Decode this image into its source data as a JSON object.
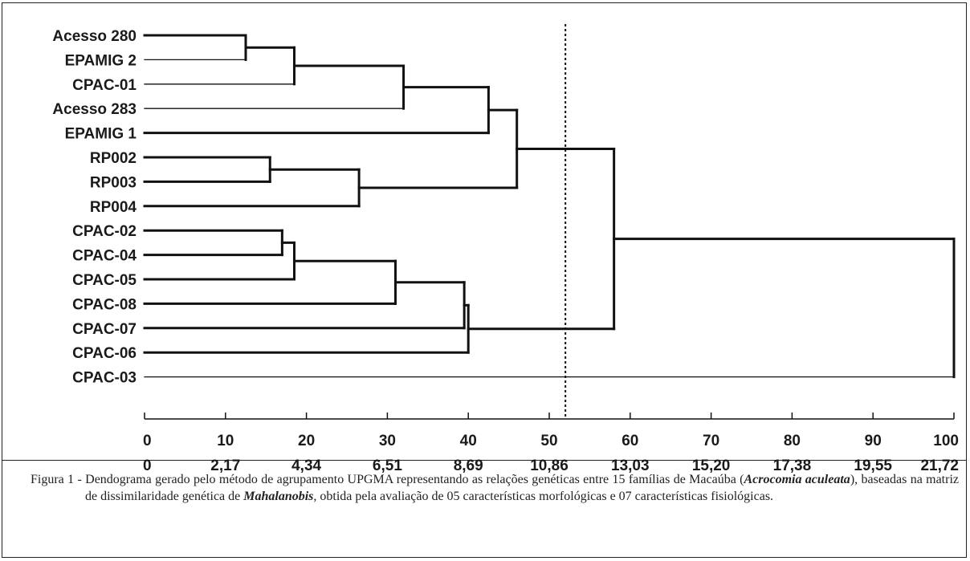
{
  "leaves": [
    "Acesso 280",
    "EPAMIG 2",
    "CPAC-01",
    "Acesso 283",
    "EPAMIG 1",
    "RP002",
    "RP003",
    "RP004",
    "CPAC-02",
    "CPAC-04",
    "CPAC-05",
    "CPAC-08",
    "CPAC-07",
    "CPAC-06",
    "CPAC-03"
  ],
  "merges": [
    {
      "a": 0,
      "b": 1,
      "height": 12.5
    },
    {
      "a": "m0",
      "b": 2,
      "height": 18.5
    },
    {
      "a": "m1",
      "b": 3,
      "height": 32
    },
    {
      "a": "m2",
      "b": 4,
      "height": 42.5
    },
    {
      "a": 5,
      "b": 6,
      "height": 15.5
    },
    {
      "a": "m4",
      "b": 7,
      "height": 26.5
    },
    {
      "a": "m3",
      "b": "m5",
      "height": 46
    },
    {
      "a": 8,
      "b": 9,
      "height": 17
    },
    {
      "a": "m7",
      "b": 10,
      "height": 18.5
    },
    {
      "a": "m8",
      "b": 11,
      "height": 31
    },
    {
      "a": "m9",
      "b": 12,
      "height": 39.5
    },
    {
      "a": "m10",
      "b": 13,
      "height": 40
    },
    {
      "a": "m6",
      "b": "m11",
      "height": 58
    },
    {
      "a": "m12",
      "b": 14,
      "height": 100
    }
  ],
  "axis": {
    "range": [
      0,
      100
    ],
    "ticks_primary": [
      "0",
      "10",
      "20",
      "30",
      "40",
      "50",
      "60",
      "70",
      "80",
      "90",
      "100"
    ],
    "ticks_secondary": [
      "0",
      "2,17",
      "4,34",
      "6,51",
      "8,69",
      "10,86",
      "13,03",
      "15,20",
      "17,38",
      "19,55",
      "21,72"
    ]
  },
  "cut_line_value": 52,
  "caption": {
    "label": "Figura 1 - ",
    "text_1": "Dendograma gerado pelo método de agrupamento UPGMA representando as relações genéticas entre 15 famílias de Macaúba (",
    "species": "Acrocomia aculeata",
    "text_2": "), baseadas na matriz de dissimilaridade genética de ",
    "method": "Mahalanobis",
    "text_3": ", obtida pela avaliação de 05 características morfológicas e 07 características fisiológicas."
  },
  "colors": {
    "line": "#111111",
    "text": "#1a1a1a"
  }
}
